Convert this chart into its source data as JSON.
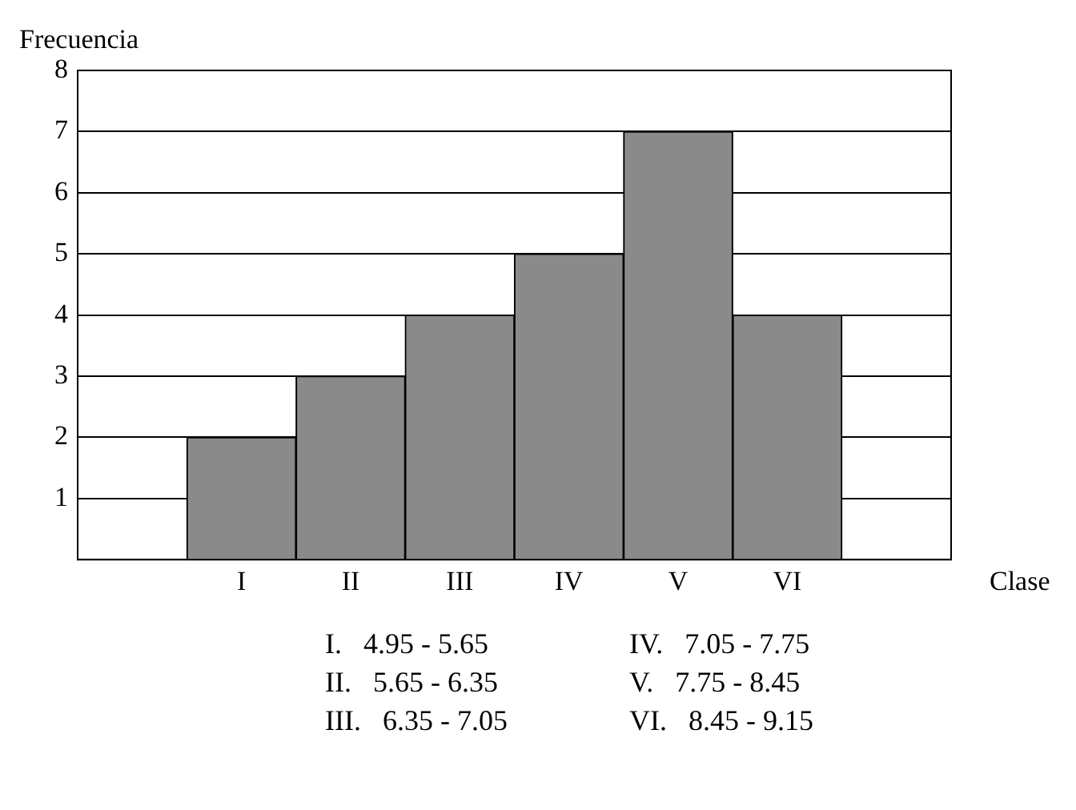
{
  "chart_data": {
    "type": "bar",
    "xlabel": "Clase",
    "ylabel": "Frecuencia",
    "categories": [
      null,
      "I",
      "II",
      "III",
      "IV",
      "V",
      "VI",
      null
    ],
    "values": [
      null,
      2,
      3,
      4,
      5,
      7,
      4,
      null
    ],
    "color": "#8a8a8a",
    "ylim": [
      0,
      8
    ],
    "yticks": [
      1,
      2,
      3,
      4,
      5,
      6,
      7,
      8
    ],
    "grid": "y",
    "annotations": [
      "I.   4.95 - 5.65",
      "II.   5.65 - 6.35",
      "III.   6.35 - 7.05",
      "IV.   7.05 - 7.75",
      "V.   7.75 - 8.45",
      "VI.   8.45 - 9.15"
    ]
  }
}
